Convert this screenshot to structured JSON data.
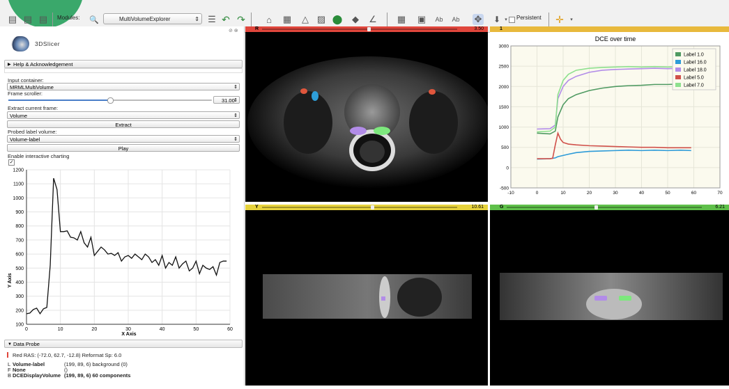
{
  "toolbar": {
    "modules_label": "Modules:",
    "module_selected": "MultiVolumeExplorer",
    "persistent_label": "Persistent"
  },
  "app": {
    "name": "3DSlicer"
  },
  "left": {
    "help_section": "Help & Acknowledgement",
    "input_container_label": "Input container:",
    "input_container_value": "MRMLMultiVolume",
    "frame_scroller_label": "Frame scroller:",
    "frame_value": "31.00",
    "frame_fraction": 0.5,
    "extract_frame_label": "Extract current frame:",
    "extract_frame_value": "Volume",
    "extract_button": "Extract",
    "probed_label_label": "Probed label volume:",
    "probed_label_value": "Volume-label",
    "play_button": "Play",
    "interactive_label": "Enable interactive charting",
    "interactive_checked": true,
    "data_probe_section": "Data Probe",
    "probe_line1": "Red   RAS: (-72.0, 62.7, -12.8)   Reformat  Sp: 6.0",
    "probe_L_key": "L",
    "probe_L_name": "Volume-label",
    "probe_L_val": "(199, 89, 6) background (0)",
    "probe_F_key": "F",
    "probe_F_name": "None",
    "probe_F_val": "()",
    "probe_B_key": "B",
    "probe_B_name": "DCEDisplayVolume",
    "probe_B_val": "(199, 89, 6) 60 components"
  },
  "views": {
    "red": {
      "label": "R",
      "value": "3.50",
      "color": "#e0463c"
    },
    "chart": {
      "label": "1",
      "color": "#e8b93c"
    },
    "yellow": {
      "label": "Y",
      "value": "10.61",
      "color": "#e6d23c"
    },
    "green": {
      "label": "G",
      "value": "6.21",
      "color": "#5fc04a"
    }
  },
  "chart_data": [
    {
      "type": "line",
      "title": "",
      "xlabel": "X Axis",
      "ylabel": "Y Axis",
      "xlim": [
        0,
        60
      ],
      "ylim": [
        100,
        1200
      ],
      "xticks": [
        0,
        10,
        20,
        30,
        40,
        50,
        60
      ],
      "yticks": [
        100,
        200,
        300,
        400,
        500,
        600,
        700,
        800,
        900,
        1000,
        1100,
        1200
      ],
      "grid": true,
      "series": [
        {
          "color": "#111111",
          "x": [
            0,
            1,
            2,
            3,
            4,
            5,
            6,
            7,
            8,
            9,
            10,
            11,
            12,
            13,
            14,
            15,
            16,
            17,
            18,
            19,
            20,
            21,
            22,
            23,
            24,
            25,
            26,
            27,
            28,
            29,
            30,
            31,
            32,
            33,
            34,
            35,
            36,
            37,
            38,
            39,
            40,
            41,
            42,
            43,
            44,
            45,
            46,
            47,
            48,
            49,
            50,
            51,
            52,
            53,
            54,
            55,
            56,
            57,
            58,
            59
          ],
          "y": [
            175,
            180,
            205,
            215,
            175,
            210,
            220,
            520,
            1140,
            1060,
            760,
            760,
            765,
            720,
            715,
            700,
            760,
            680,
            650,
            720,
            590,
            620,
            650,
            630,
            600,
            605,
            590,
            610,
            550,
            580,
            590,
            570,
            600,
            580,
            560,
            600,
            580,
            540,
            560,
            520,
            590,
            500,
            540,
            520,
            580,
            500,
            530,
            550,
            480,
            500,
            550,
            460,
            520,
            500,
            490,
            510,
            450,
            540,
            550,
            550
          ]
        }
      ]
    },
    {
      "type": "line",
      "title": "DCE over time",
      "xlim": [
        -10,
        70
      ],
      "ylim": [
        -500,
        3000
      ],
      "xticks": [
        -10,
        0,
        10,
        20,
        30,
        40,
        50,
        60,
        70
      ],
      "yticks": [
        -500,
        0,
        500,
        1000,
        1500,
        2000,
        2500,
        3000
      ],
      "grid": true,
      "legend": "top-right",
      "series": [
        {
          "name": "Label 1.0",
          "color": "#4f9a62",
          "x": [
            0,
            5,
            7,
            8,
            10,
            12,
            15,
            20,
            25,
            30,
            35,
            40,
            45,
            50,
            55,
            59
          ],
          "y": [
            850,
            830,
            900,
            1250,
            1550,
            1700,
            1800,
            1900,
            1960,
            2000,
            2020,
            2030,
            2050,
            2050,
            2060,
            2060
          ]
        },
        {
          "name": "Label 16.0",
          "color": "#2d9bd8",
          "x": [
            0,
            5,
            7,
            8,
            10,
            12,
            15,
            20,
            25,
            30,
            35,
            40,
            45,
            50,
            55,
            59
          ],
          "y": [
            210,
            220,
            240,
            270,
            300,
            330,
            370,
            400,
            410,
            420,
            430,
            420,
            430,
            420,
            430,
            420
          ]
        },
        {
          "name": "Label 18.0",
          "color": "#b28ce8",
          "x": [
            0,
            5,
            7,
            8,
            10,
            12,
            15,
            20,
            25,
            30,
            35,
            40,
            45,
            50,
            55,
            59
          ],
          "y": [
            950,
            960,
            1050,
            1700,
            2000,
            2150,
            2250,
            2350,
            2400,
            2420,
            2430,
            2440,
            2450,
            2440,
            2450,
            2450
          ]
        },
        {
          "name": "Label 5.0",
          "color": "#d0504a",
          "x": [
            0,
            5,
            6,
            7,
            8,
            9,
            10,
            12,
            15,
            20,
            25,
            30,
            35,
            40,
            45,
            50,
            55,
            59
          ],
          "y": [
            220,
            220,
            230,
            560,
            850,
            700,
            620,
            580,
            560,
            540,
            530,
            520,
            510,
            500,
            500,
            490,
            490,
            490
          ]
        },
        {
          "name": "Label 7.0",
          "color": "#8ee08e",
          "x": [
            0,
            5,
            7,
            8,
            10,
            12,
            15,
            20,
            25,
            30,
            35,
            40,
            45,
            50,
            55,
            59
          ],
          "y": [
            880,
            900,
            1000,
            1800,
            2150,
            2300,
            2400,
            2450,
            2470,
            2480,
            2490,
            2480,
            2490,
            2480,
            2490,
            2490
          ]
        }
      ]
    }
  ]
}
